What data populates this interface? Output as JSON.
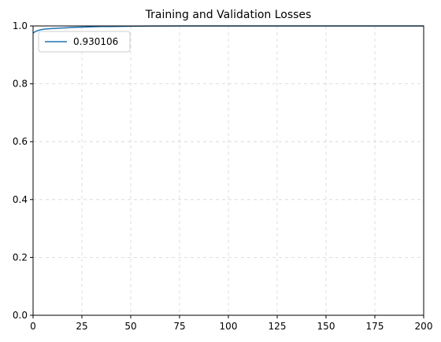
{
  "chart_data": {
    "type": "line",
    "title": "Training and Validation Losses",
    "xlabel": "",
    "ylabel": "",
    "xlim": [
      0,
      200
    ],
    "ylim": [
      0,
      1.0
    ],
    "x_ticks": [
      0,
      25,
      50,
      75,
      100,
      125,
      150,
      175,
      200
    ],
    "y_ticks": [
      0.0,
      0.2,
      0.4,
      0.6,
      0.8,
      1.0
    ],
    "x_tick_labels": [
      "0",
      "25",
      "50",
      "75",
      "100",
      "125",
      "150",
      "175",
      "200"
    ],
    "y_tick_labels": [
      "0.0",
      "0.2",
      "0.4",
      "0.6",
      "0.8",
      "1.0"
    ],
    "grid": true,
    "legend_position": "top-left",
    "series": [
      {
        "name": "0.930106",
        "color": "#1f77b4",
        "x": [
          0,
          1,
          2,
          3,
          4,
          5,
          6,
          8,
          10,
          12,
          15,
          18,
          20,
          25,
          30,
          35,
          40,
          50,
          60,
          80,
          100,
          120,
          150,
          200
        ],
        "y": [
          0.975,
          0.98,
          0.983,
          0.985,
          0.987,
          0.988,
          0.989,
          0.99,
          0.991,
          0.992,
          0.993,
          0.994,
          0.995,
          0.996,
          0.997,
          0.998,
          0.998,
          0.999,
          0.9995,
          1.0,
          1.0,
          1.0,
          1.0,
          1.0
        ]
      }
    ]
  }
}
